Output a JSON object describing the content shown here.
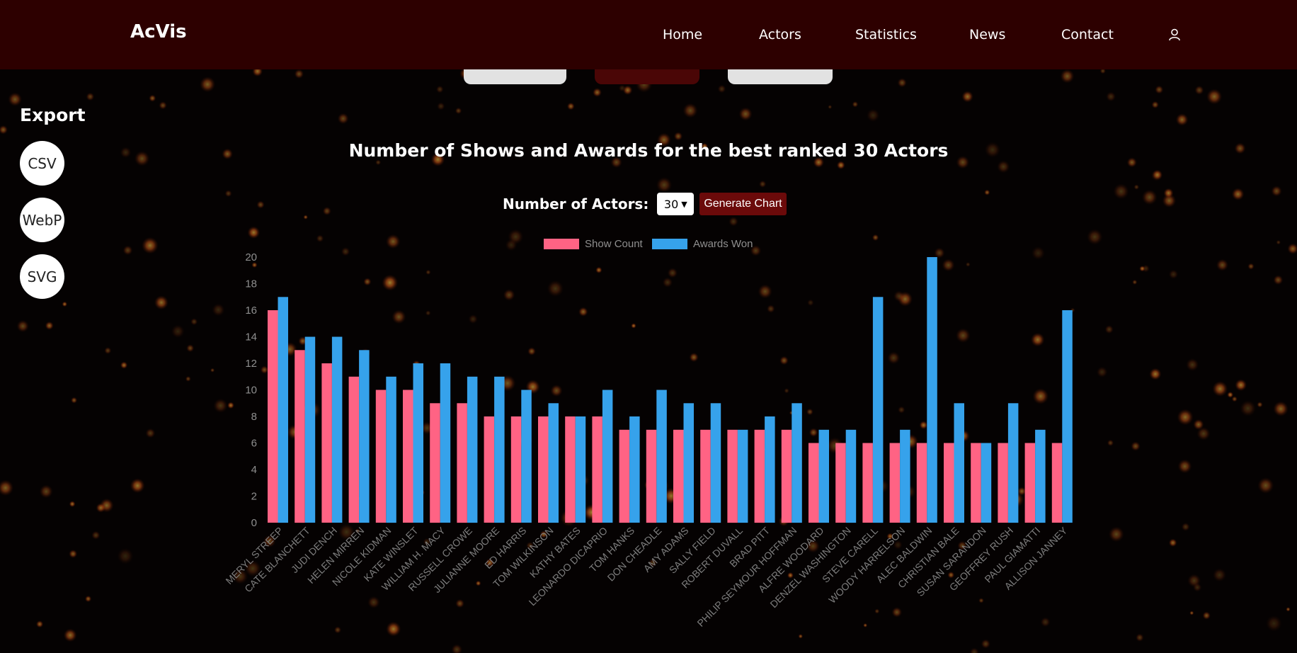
{
  "nav": {
    "brand": "AcVis",
    "links": [
      {
        "label": "Home"
      },
      {
        "label": "Actors"
      },
      {
        "label": "Statistics"
      },
      {
        "label": "News"
      },
      {
        "label": "Contact"
      }
    ],
    "user_icon": "user-icon"
  },
  "export": {
    "title": "Export",
    "buttons": [
      {
        "label": "CSV"
      },
      {
        "label": "WebP"
      },
      {
        "label": "SVG"
      }
    ]
  },
  "page_title": "Number of Shows and Awards for the best ranked 30 Actors",
  "controls": {
    "label": "Number of Actors:",
    "selected": "30",
    "generate_label": "Generate Chart"
  },
  "colors": {
    "navbar": "#2d0000",
    "show_count": "#ff6384",
    "awards_won": "#36a2eb"
  },
  "chart_data": {
    "type": "bar",
    "title": "Number of Shows and Awards for the best ranked 30 Actors",
    "categories": [
      "MERYL STREEP",
      "CATE BLANCHETT",
      "JUDI DENCH",
      "HELEN MIRREN",
      "NICOLE KIDMAN",
      "KATE WINSLET",
      "WILLIAM H. MACY",
      "RUSSELL CROWE",
      "JULIANNE MOORE",
      "ED HARRIS",
      "TOM WILKINSON",
      "KATHY BATES",
      "LEONARDO DICAPRIO",
      "TOM HANKS",
      "DON CHEADLE",
      "AMY ADAMS",
      "SALLY FIELD",
      "ROBERT DUVALL",
      "BRAD PITT",
      "PHILIP SEYMOUR HOFFMAN",
      "ALFRE WOODARD",
      "DENZEL WASHINGTON",
      "STEVE CARELL",
      "WOODY HARRELSON",
      "ALEC BALDWIN",
      "CHRISTIAN BALE",
      "SUSAN SARANDON",
      "GEOFFREY RUSH",
      "PAUL GIAMATTI",
      "ALLISON JANNEY"
    ],
    "series": [
      {
        "name": "Show Count",
        "color": "#ff6384",
        "values": [
          16,
          13,
          12,
          11,
          10,
          10,
          9,
          9,
          8,
          8,
          8,
          8,
          8,
          7,
          7,
          7,
          7,
          7,
          7,
          7,
          6,
          6,
          6,
          6,
          6,
          6,
          6,
          6,
          6,
          6
        ]
      },
      {
        "name": "Awards Won",
        "color": "#36a2eb",
        "values": [
          17,
          14,
          14,
          13,
          11,
          12,
          12,
          11,
          11,
          10,
          9,
          8,
          10,
          8,
          10,
          9,
          9,
          7,
          8,
          9,
          7,
          7,
          17,
          7,
          20,
          9,
          6,
          9,
          7,
          16
        ]
      }
    ],
    "ylim": [
      0,
      20
    ],
    "yticks": [
      0,
      2,
      4,
      6,
      8,
      10,
      12,
      14,
      16,
      18,
      20
    ],
    "legend": "top-center",
    "grid": false
  }
}
